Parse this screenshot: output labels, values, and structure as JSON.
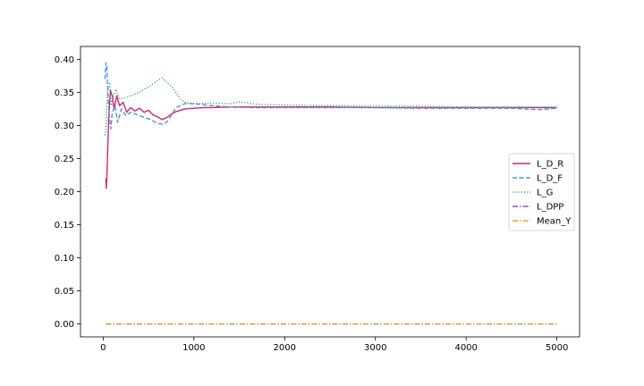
{
  "chart_data": {
    "type": "line",
    "title": "",
    "xlabel": "",
    "ylabel": "",
    "xlim": [
      -250,
      5250
    ],
    "ylim": [
      -0.0195,
      0.4195
    ],
    "xticks": [
      0,
      1000,
      2000,
      3000,
      4000,
      5000
    ],
    "xtick_labels": [
      "0",
      "1000",
      "2000",
      "3000",
      "4000",
      "5000"
    ],
    "yticks": [
      0.0,
      0.05,
      0.1,
      0.15,
      0.2,
      0.25,
      0.3,
      0.35,
      0.4
    ],
    "ytick_labels": [
      "0.00",
      "0.05",
      "0.10",
      "0.15",
      "0.20",
      "0.25",
      "0.30",
      "0.35",
      "0.40"
    ],
    "grid": false,
    "legend_position": "center-right",
    "series": [
      {
        "name": "L_D_R",
        "color": "#d6236f",
        "style": "solid",
        "points": [
          [
            30,
            0.22
          ],
          [
            35,
            0.205
          ],
          [
            45,
            0.24
          ],
          [
            60,
            0.31
          ],
          [
            80,
            0.353
          ],
          [
            100,
            0.345
          ],
          [
            120,
            0.325
          ],
          [
            150,
            0.345
          ],
          [
            180,
            0.33
          ],
          [
            220,
            0.335
          ],
          [
            260,
            0.32
          ],
          [
            300,
            0.327
          ],
          [
            350,
            0.322
          ],
          [
            400,
            0.326
          ],
          [
            450,
            0.32
          ],
          [
            500,
            0.323
          ],
          [
            550,
            0.316
          ],
          [
            600,
            0.313
          ],
          [
            650,
            0.309
          ],
          [
            700,
            0.312
          ],
          [
            750,
            0.317
          ],
          [
            800,
            0.321
          ],
          [
            850,
            0.323
          ],
          [
            900,
            0.325
          ],
          [
            1000,
            0.326
          ],
          [
            1100,
            0.327
          ],
          [
            1200,
            0.327
          ],
          [
            1400,
            0.328
          ],
          [
            1600,
            0.328
          ],
          [
            2000,
            0.328
          ],
          [
            2500,
            0.328
          ],
          [
            3000,
            0.327
          ],
          [
            3500,
            0.327
          ],
          [
            4000,
            0.327
          ],
          [
            4500,
            0.327
          ],
          [
            5000,
            0.327
          ]
        ]
      },
      {
        "name": "L_D_F",
        "color": "#5b8fde",
        "style": "dashed",
        "points": [
          [
            20,
            0.37
          ],
          [
            30,
            0.395
          ],
          [
            40,
            0.39
          ],
          [
            55,
            0.34
          ],
          [
            70,
            0.31
          ],
          [
            85,
            0.295
          ],
          [
            100,
            0.32
          ],
          [
            130,
            0.33
          ],
          [
            160,
            0.305
          ],
          [
            200,
            0.325
          ],
          [
            250,
            0.315
          ],
          [
            300,
            0.32
          ],
          [
            400,
            0.315
          ],
          [
            500,
            0.31
          ],
          [
            550,
            0.307
          ],
          [
            600,
            0.303
          ],
          [
            650,
            0.302
          ],
          [
            700,
            0.305
          ],
          [
            750,
            0.315
          ],
          [
            800,
            0.327
          ],
          [
            900,
            0.333
          ],
          [
            1000,
            0.333
          ],
          [
            1200,
            0.33
          ],
          [
            1400,
            0.328
          ],
          [
            1700,
            0.327
          ],
          [
            2000,
            0.327
          ],
          [
            2500,
            0.327
          ],
          [
            3000,
            0.327
          ],
          [
            3500,
            0.326
          ],
          [
            4000,
            0.326
          ],
          [
            4500,
            0.326
          ],
          [
            4800,
            0.324
          ],
          [
            5000,
            0.326
          ]
        ]
      },
      {
        "name": "L_G",
        "color": "#3aa672",
        "style": "dotted",
        "points": [
          [
            20,
            0.285
          ],
          [
            30,
            0.3
          ],
          [
            50,
            0.355
          ],
          [
            70,
            0.365
          ],
          [
            90,
            0.33
          ],
          [
            110,
            0.34
          ],
          [
            140,
            0.355
          ],
          [
            180,
            0.34
          ],
          [
            250,
            0.342
          ],
          [
            300,
            0.345
          ],
          [
            400,
            0.35
          ],
          [
            450,
            0.355
          ],
          [
            500,
            0.358
          ],
          [
            550,
            0.363
          ],
          [
            600,
            0.368
          ],
          [
            650,
            0.372
          ],
          [
            700,
            0.365
          ],
          [
            750,
            0.36
          ],
          [
            800,
            0.35
          ],
          [
            850,
            0.34
          ],
          [
            900,
            0.335
          ],
          [
            1000,
            0.333
          ],
          [
            1200,
            0.334
          ],
          [
            1400,
            0.333
          ],
          [
            1500,
            0.336
          ],
          [
            1700,
            0.332
          ],
          [
            2000,
            0.331
          ],
          [
            2500,
            0.33
          ],
          [
            3000,
            0.329
          ],
          [
            3500,
            0.329
          ],
          [
            4000,
            0.328
          ],
          [
            4500,
            0.328
          ],
          [
            5000,
            0.328
          ]
        ]
      },
      {
        "name": "L_DPP",
        "color": "#6b5fcf",
        "style": "dashdot",
        "points": [
          [
            30,
            0.0
          ],
          [
            5000,
            0.0
          ]
        ]
      },
      {
        "name": "Mean_Y",
        "color": "#f2a31b",
        "style": "dashdot",
        "points": [
          [
            30,
            0.0
          ],
          [
            5000,
            0.0
          ]
        ]
      }
    ]
  }
}
